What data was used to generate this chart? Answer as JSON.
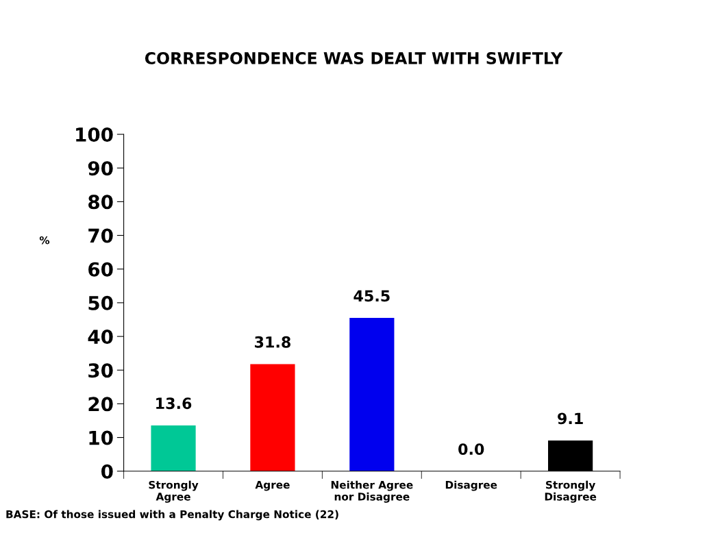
{
  "chart_data": {
    "type": "bar",
    "title": "CORRESPONDENCE WAS DEALT WITH SWIFTLY",
    "ylabel": "%",
    "categories": [
      "Strongly Agree",
      "Agree",
      "Neither Agree nor Disagree",
      "Disagree",
      "Strongly Disagree"
    ],
    "values": [
      13.6,
      31.8,
      45.5,
      0.0,
      9.1
    ],
    "colors": [
      "#00c896",
      "#ff0000",
      "#0000ee",
      "#7a2050",
      "#000000"
    ],
    "value_labels": [
      "13.6",
      "31.8",
      "45.5",
      "0.0",
      "9.1"
    ],
    "ylim": [
      0,
      100
    ],
    "yticks": [
      0,
      10,
      20,
      30,
      40,
      50,
      60,
      70,
      80,
      90,
      100
    ],
    "grid": false,
    "legend": false,
    "annotations": [
      "BASE: Of those issued with a Penalty Charge Notice (22)"
    ]
  }
}
